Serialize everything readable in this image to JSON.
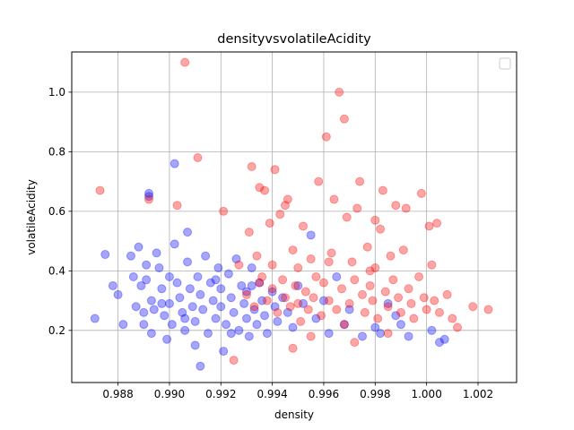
{
  "chart_data": {
    "type": "scatter",
    "title": "densityvsvolatileAcidity",
    "xlabel": "density",
    "ylabel": "volatileAcidity",
    "xlim": [
      0.9862,
      1.0035
    ],
    "ylim": [
      0.025,
      1.135
    ],
    "xticks": [
      0.988,
      0.99,
      0.992,
      0.994,
      0.996,
      0.998,
      1.0,
      1.002
    ],
    "xtick_labels": [
      "0.988",
      "0.990",
      "0.992",
      "0.994",
      "0.996",
      "0.998",
      "1.000",
      "1.002"
    ],
    "yticks": [
      0.2,
      0.4,
      0.6,
      0.8,
      1.0
    ],
    "ytick_labels": [
      "0.2",
      "0.4",
      "0.6",
      "0.8",
      "1.0"
    ],
    "grid": true,
    "legend": "upper-right (empty)",
    "marker_alpha": 0.35,
    "series": [
      {
        "color": "#0000ff",
        "points": [
          [
            0.9871,
            0.24
          ],
          [
            0.9875,
            0.455
          ],
          [
            0.9878,
            0.35
          ],
          [
            0.988,
            0.32
          ],
          [
            0.9882,
            0.22
          ],
          [
            0.9885,
            0.45
          ],
          [
            0.9886,
            0.38
          ],
          [
            0.9887,
            0.28
          ],
          [
            0.9888,
            0.48
          ],
          [
            0.9889,
            0.35
          ],
          [
            0.989,
            0.26
          ],
          [
            0.989,
            0.22
          ],
          [
            0.9891,
            0.42
          ],
          [
            0.9891,
            0.37
          ],
          [
            0.9892,
            0.66
          ],
          [
            0.9892,
            0.65
          ],
          [
            0.9893,
            0.3
          ],
          [
            0.9893,
            0.19
          ],
          [
            0.9894,
            0.27
          ],
          [
            0.9895,
            0.46
          ],
          [
            0.9896,
            0.41
          ],
          [
            0.9897,
            0.34
          ],
          [
            0.9898,
            0.25
          ],
          [
            0.9899,
            0.17
          ],
          [
            0.99,
            0.38
          ],
          [
            0.99,
            0.29
          ],
          [
            0.9901,
            0.22
          ],
          [
            0.9902,
            0.49
          ],
          [
            0.9902,
            0.76
          ],
          [
            0.9903,
            0.36
          ],
          [
            0.9904,
            0.31
          ],
          [
            0.9905,
            0.26
          ],
          [
            0.9906,
            0.2
          ],
          [
            0.9907,
            0.53
          ],
          [
            0.9907,
            0.43
          ],
          [
            0.9908,
            0.34
          ],
          [
            0.9909,
            0.28
          ],
          [
            0.991,
            0.15
          ],
          [
            0.991,
            0.23
          ],
          [
            0.9911,
            0.38
          ],
          [
            0.9912,
            0.08
          ],
          [
            0.9912,
            0.32
          ],
          [
            0.9913,
            0.27
          ],
          [
            0.9914,
            0.45
          ],
          [
            0.9915,
            0.19
          ],
          [
            0.9916,
            0.36
          ],
          [
            0.9917,
            0.3
          ],
          [
            0.9918,
            0.24
          ],
          [
            0.9919,
            0.41
          ],
          [
            0.992,
            0.28
          ],
          [
            0.992,
            0.34
          ],
          [
            0.9921,
            0.13
          ],
          [
            0.9922,
            0.22
          ],
          [
            0.9923,
            0.39
          ],
          [
            0.9924,
            0.31
          ],
          [
            0.9925,
            0.26
          ],
          [
            0.9926,
            0.44
          ],
          [
            0.9927,
            0.2
          ],
          [
            0.9928,
            0.35
          ],
          [
            0.9929,
            0.29
          ],
          [
            0.993,
            0.24
          ],
          [
            0.993,
            0.33
          ],
          [
            0.9931,
            0.18
          ],
          [
            0.9932,
            0.41
          ],
          [
            0.9933,
            0.27
          ],
          [
            0.9934,
            0.22
          ],
          [
            0.9935,
            0.36
          ],
          [
            0.9936,
            0.3
          ],
          [
            0.9937,
            0.25
          ],
          [
            0.9938,
            0.19
          ],
          [
            0.994,
            0.33
          ],
          [
            0.9941,
            0.28
          ],
          [
            0.9942,
            0.23
          ],
          [
            0.9944,
            0.31
          ],
          [
            0.9946,
            0.26
          ],
          [
            0.9948,
            0.21
          ],
          [
            0.995,
            0.35
          ],
          [
            0.9952,
            0.29
          ],
          [
            0.9955,
            0.52
          ],
          [
            0.9957,
            0.24
          ],
          [
            0.996,
            0.3
          ],
          [
            0.9962,
            0.19
          ],
          [
            0.9965,
            0.38
          ],
          [
            0.9968,
            0.22
          ],
          [
            0.997,
            0.27
          ],
          [
            0.9975,
            0.18
          ],
          [
            0.998,
            0.21
          ],
          [
            0.9982,
            0.19
          ],
          [
            0.9985,
            0.29
          ],
          [
            0.9988,
            0.25
          ],
          [
            0.999,
            0.22
          ],
          [
            0.9993,
            0.18
          ],
          [
            1.0002,
            0.2
          ],
          [
            1.0005,
            0.16
          ],
          [
            1.0007,
            0.17
          ],
          [
            0.9918,
            0.37
          ],
          [
            0.9906,
            0.24
          ],
          [
            0.9924,
            0.19
          ],
          [
            0.9897,
            0.29
          ],
          [
            0.9932,
            0.35
          ]
        ]
      },
      {
        "color": "#ff0000",
        "points": [
          [
            0.9873,
            0.67
          ],
          [
            0.9892,
            0.64
          ],
          [
            0.9903,
            0.62
          ],
          [
            0.9906,
            1.1
          ],
          [
            0.9911,
            0.78
          ],
          [
            0.9921,
            0.6
          ],
          [
            0.9927,
            0.42
          ],
          [
            0.993,
            0.32
          ],
          [
            0.9931,
            0.53
          ],
          [
            0.9932,
            0.75
          ],
          [
            0.9933,
            0.28
          ],
          [
            0.9934,
            0.45
          ],
          [
            0.9935,
            0.68
          ],
          [
            0.9936,
            0.38
          ],
          [
            0.9937,
            0.67
          ],
          [
            0.9938,
            0.3
          ],
          [
            0.9939,
            0.56
          ],
          [
            0.994,
            0.34
          ],
          [
            0.994,
            0.42
          ],
          [
            0.9941,
            0.74
          ],
          [
            0.9942,
            0.26
          ],
          [
            0.9943,
            0.59
          ],
          [
            0.9944,
            0.37
          ],
          [
            0.9945,
            0.31
          ],
          [
            0.9946,
            0.64
          ],
          [
            0.9947,
            0.28
          ],
          [
            0.9948,
            0.47
          ],
          [
            0.9949,
            0.35
          ],
          [
            0.995,
            0.29
          ],
          [
            0.995,
            0.41
          ],
          [
            0.9951,
            0.23
          ],
          [
            0.9952,
            0.55
          ],
          [
            0.9953,
            0.33
          ],
          [
            0.9954,
            0.27
          ],
          [
            0.9955,
            0.44
          ],
          [
            0.9956,
            0.31
          ],
          [
            0.9957,
            0.38
          ],
          [
            0.9958,
            0.7
          ],
          [
            0.9959,
            0.25
          ],
          [
            0.996,
            0.36
          ],
          [
            0.9961,
            0.85
          ],
          [
            0.9962,
            0.3
          ],
          [
            0.9963,
            0.46
          ],
          [
            0.9964,
            0.64
          ],
          [
            0.9965,
            0.27
          ],
          [
            0.9966,
            1.0
          ],
          [
            0.9967,
            0.34
          ],
          [
            0.9968,
            0.91
          ],
          [
            0.9969,
            0.58
          ],
          [
            0.997,
            0.29
          ],
          [
            0.9971,
            0.43
          ],
          [
            0.9972,
            0.37
          ],
          [
            0.9973,
            0.61
          ],
          [
            0.9974,
            0.7
          ],
          [
            0.9975,
            0.32
          ],
          [
            0.9976,
            0.26
          ],
          [
            0.9977,
            0.48
          ],
          [
            0.9978,
            0.35
          ],
          [
            0.9979,
            0.3
          ],
          [
            0.998,
            0.57
          ],
          [
            0.998,
            0.41
          ],
          [
            0.9981,
            0.24
          ],
          [
            0.9982,
            0.54
          ],
          [
            0.9983,
            0.67
          ],
          [
            0.9984,
            0.33
          ],
          [
            0.9985,
            0.28
          ],
          [
            0.9986,
            0.45
          ],
          [
            0.9987,
            0.37
          ],
          [
            0.9988,
            0.62
          ],
          [
            0.9989,
            0.31
          ],
          [
            0.999,
            0.26
          ],
          [
            0.9991,
            0.47
          ],
          [
            0.9992,
            0.61
          ],
          [
            0.9993,
            0.34
          ],
          [
            0.9994,
            0.29
          ],
          [
            0.9995,
            0.24
          ],
          [
            0.9997,
            0.38
          ],
          [
            0.9998,
            0.66
          ],
          [
            0.9999,
            0.31
          ],
          [
            1.0,
            0.27
          ],
          [
            1.0001,
            0.55
          ],
          [
            1.0002,
            0.42
          ],
          [
            1.0003,
            0.3
          ],
          [
            1.0004,
            0.56
          ],
          [
            1.0005,
            0.26
          ],
          [
            1.0008,
            0.32
          ],
          [
            1.001,
            0.24
          ],
          [
            1.0012,
            0.21
          ],
          [
            1.0018,
            0.28
          ],
          [
            1.0024,
            0.27
          ],
          [
            0.9945,
            0.62
          ],
          [
            0.9935,
            0.36
          ],
          [
            0.9962,
            0.43
          ],
          [
            0.9978,
            0.4
          ],
          [
            0.9955,
            0.18
          ],
          [
            0.9968,
            0.22
          ],
          [
            0.9972,
            0.16
          ],
          [
            0.9948,
            0.14
          ],
          [
            0.9985,
            0.19
          ],
          [
            0.9925,
            0.1
          ]
        ]
      }
    ]
  }
}
